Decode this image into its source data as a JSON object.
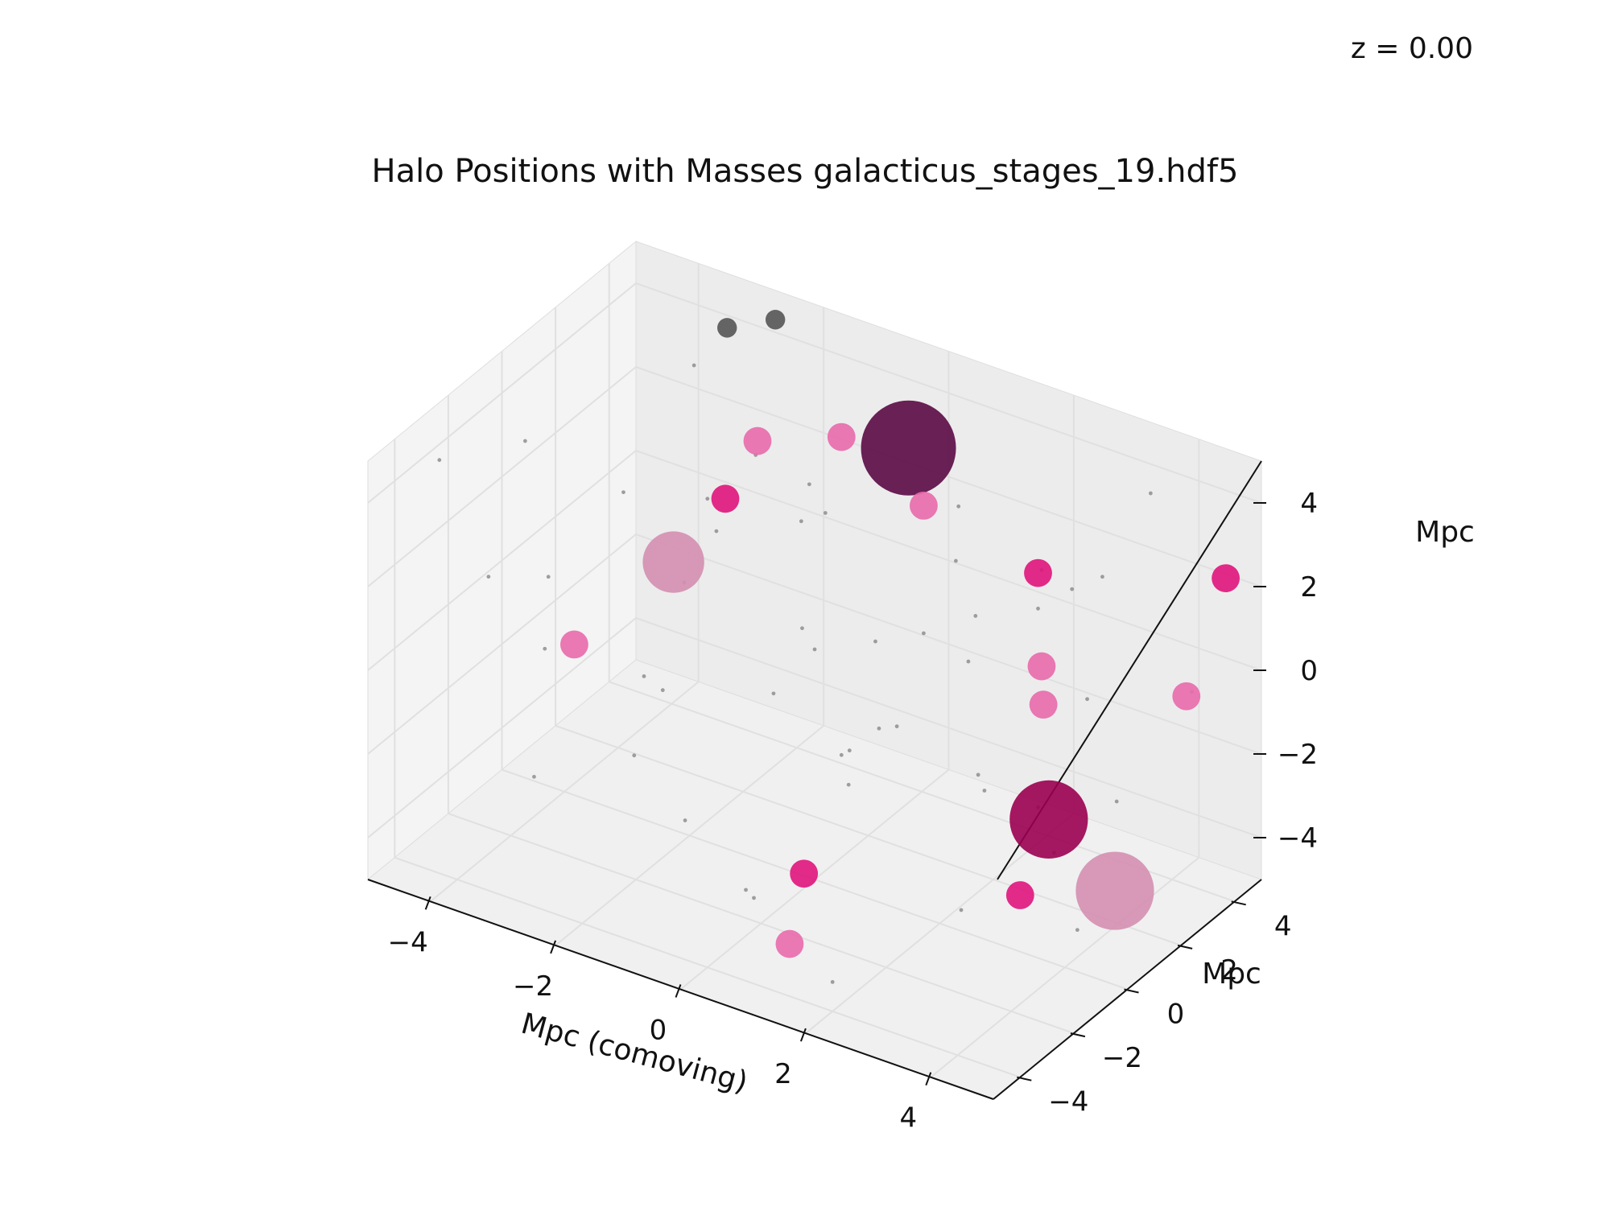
{
  "chart_data": {
    "type": "scatter",
    "projection": "3d",
    "title": "Halo Positions with Masses galacticus_stages_19.hdf5",
    "annotation": "z = 0.00",
    "xlabel": "Mpc (comoving)",
    "ylabel": "Mpc",
    "zlabel": "Mpc",
    "xlim": [
      -5,
      5
    ],
    "ylim": [
      -5,
      5
    ],
    "zlim": [
      -5,
      5
    ],
    "xticks": [
      -4,
      -2,
      0,
      2,
      4
    ],
    "yticks": [
      -4,
      -2,
      0,
      2,
      4
    ],
    "zticks": [
      -4,
      -2,
      0,
      2,
      4
    ],
    "xtick_labels": [
      "−4",
      "−2",
      "0",
      "2",
      "4"
    ],
    "ytick_labels": [
      "−4",
      "−2",
      "0",
      "2",
      "4"
    ],
    "ztick_labels": [
      "−4",
      "−2",
      "0",
      "2",
      "4"
    ],
    "grid": true,
    "colors": {
      "background_pane": "#f2f2f2",
      "grid": "#e0e0e0",
      "small_halo": "#8c8c8c",
      "medium_halo": "#555555",
      "massive_halo_darkest": "#5a0a45",
      "massive_halo_dark": "#9a0050",
      "halo_magenta": "#e0147c",
      "halo_pink": "#e86aac",
      "halo_light_pink": "#d48fb0"
    },
    "series": [
      {
        "type": "particles",
        "color": "#888888",
        "points": [
          [
            -4.5,
            -3.5,
            4.5
          ],
          [
            -4.2,
            -1.0,
            3.8
          ],
          [
            -3.5,
            -4.0,
            2.5
          ],
          [
            -3.0,
            2.5,
            4.4
          ],
          [
            -2.4,
            1.6,
            2.0
          ],
          [
            -2.0,
            -1.0,
            -1.0
          ],
          [
            -1.5,
            3.0,
            1.2
          ],
          [
            -1.0,
            -2.5,
            -2.8
          ],
          [
            -0.6,
            1.2,
            3.5
          ],
          [
            0.0,
            0.0,
            0.5
          ],
          [
            0.4,
            -3.5,
            -3.2
          ],
          [
            0.8,
            3.5,
            2.5
          ],
          [
            1.2,
            -1.5,
            -0.5
          ],
          [
            1.6,
            2.0,
            0.0
          ],
          [
            2.0,
            -4.0,
            -4.3
          ],
          [
            2.4,
            0.5,
            -1.5
          ],
          [
            2.8,
            4.2,
            1.5
          ],
          [
            3.2,
            -2.0,
            -3.0
          ],
          [
            3.6,
            1.2,
            3.2
          ],
          [
            4.0,
            -3.0,
            0.8
          ],
          [
            4.4,
            3.8,
            -0.2
          ],
          [
            4.7,
            -0.8,
            2.2
          ],
          [
            -3.8,
            4.0,
            -2.0
          ],
          [
            -2.8,
            -0.2,
            -3.4
          ],
          [
            -1.8,
            4.6,
            0.4
          ],
          [
            -0.8,
            -4.5,
            1.8
          ],
          [
            0.2,
            2.6,
            -2.6
          ],
          [
            1.0,
            -2.8,
            3.0
          ],
          [
            2.2,
            3.2,
            -3.8
          ],
          [
            3.0,
            -4.6,
            2.6
          ],
          [
            3.8,
            2.4,
            -2.4
          ],
          [
            4.6,
            -1.8,
            -1.0
          ],
          [
            -4.6,
            0.8,
            -0.6
          ],
          [
            -3.2,
            -2.6,
            0.2
          ],
          [
            -2.2,
            3.6,
            -3.6
          ],
          [
            -1.2,
            0.6,
            4.2
          ],
          [
            -0.2,
            -1.8,
            -4.6
          ],
          [
            0.6,
            4.6,
            -0.8
          ],
          [
            1.4,
            0.8,
            1.2
          ],
          [
            2.6,
            -0.8,
            4.4
          ],
          [
            3.4,
            4.6,
            3.6
          ],
          [
            4.2,
            0.0,
            -4.0
          ],
          [
            -4.0,
            2.2,
            1.0
          ],
          [
            -2.6,
            -4.4,
            -1.6
          ],
          [
            -1.4,
            -0.4,
            2.8
          ],
          [
            -0.4,
            3.2,
            -1.2
          ],
          [
            0.8,
            -0.6,
            -2.0
          ],
          [
            1.8,
            -3.2,
            0.6
          ],
          [
            2.8,
            1.8,
            2.0
          ],
          [
            3.8,
            -0.4,
            4.6
          ]
        ]
      },
      {
        "type": "halos",
        "points": [
          {
            "x": -3.2,
            "y": 4.2,
            "z": 4.3,
            "mass": 1,
            "color": "#555555"
          },
          {
            "x": -2.6,
            "y": 4.6,
            "z": 4.6,
            "mass": 1,
            "color": "#555555"
          },
          {
            "x": -1.6,
            "y": 1.6,
            "z": 3.8,
            "mass": 2,
            "color": "#e86aac"
          },
          {
            "x": -0.6,
            "y": 2.4,
            "z": 4.0,
            "mass": 2,
            "color": "#e86aac"
          },
          {
            "x": 0.3,
            "y": 2.8,
            "z": 4.0,
            "mass": 10,
            "color": "#5a0a45"
          },
          {
            "x": 0.8,
            "y": 2.2,
            "z": 3.2,
            "mass": 2,
            "color": "#e86aac"
          },
          {
            "x": -2.2,
            "y": 1.8,
            "z": 2.0,
            "mass": 2,
            "color": "#e0147c"
          },
          {
            "x": -2.6,
            "y": 0.8,
            "z": 0.8,
            "mass": 6,
            "color": "#d48fb0"
          },
          {
            "x": -3.5,
            "y": -0.8,
            "z": -0.8,
            "mass": 2,
            "color": "#e86aac"
          },
          {
            "x": 2.2,
            "y": 3.2,
            "z": 1.8,
            "mass": 2,
            "color": "#e0147c"
          },
          {
            "x": 2.6,
            "y": 2.4,
            "z": 0.2,
            "mass": 2,
            "color": "#e86aac"
          },
          {
            "x": 2.8,
            "y": 2.0,
            "z": -0.4,
            "mass": 2,
            "color": "#e86aac"
          },
          {
            "x": 4.6,
            "y": 4.6,
            "z": 2.2,
            "mass": 2,
            "color": "#e0147c"
          },
          {
            "x": 4.4,
            "y": 3.6,
            "z": -0.2,
            "mass": 2,
            "color": "#e86aac"
          },
          {
            "x": 3.4,
            "y": 0.8,
            "z": -2.2,
            "mass": 8,
            "color": "#9a0050"
          },
          {
            "x": 4.2,
            "y": 1.4,
            "z": -3.8,
            "mass": 8,
            "color": "#d48fb0"
          },
          {
            "x": 3.2,
            "y": 0.2,
            "z": -3.8,
            "mass": 2,
            "color": "#e0147c"
          },
          {
            "x": 0.6,
            "y": -1.8,
            "z": -3.6,
            "mass": 2,
            "color": "#e0147c"
          },
          {
            "x": 1.4,
            "y": -4.2,
            "z": -3.6,
            "mass": 2,
            "color": "#e86aac"
          }
        ]
      }
    ]
  }
}
